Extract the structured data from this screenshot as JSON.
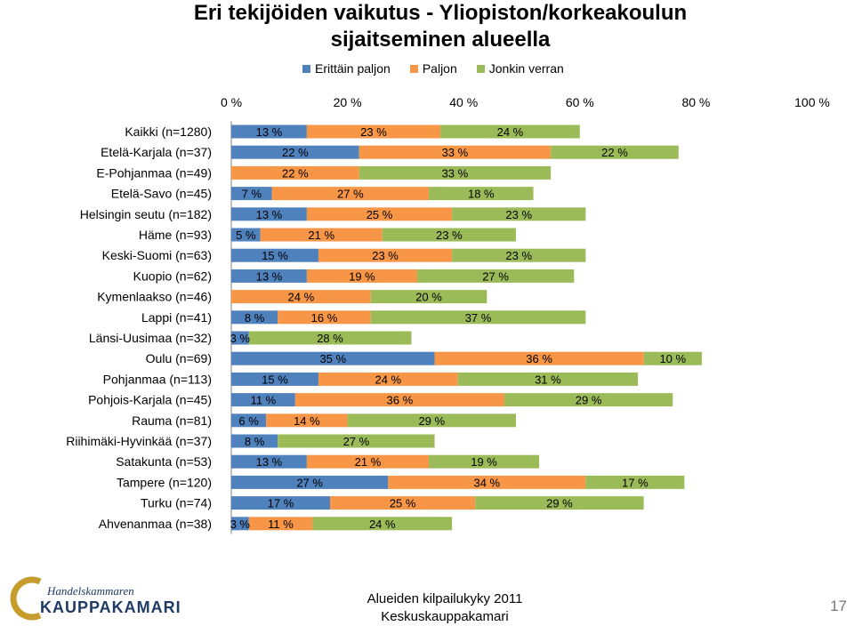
{
  "title_line1": "Eri tekijöiden vaikutus - Yliopiston/korkeakoulun",
  "title_line2": "sijaitseminen alueella",
  "footer": {
    "logo_line1": "Handelskammaren",
    "logo_line2": "KAUPPAKAMARI",
    "line1": "Alueiden kilpailukyky 2011",
    "line2": "Keskuskauppakamari",
    "page": "17"
  },
  "colors": {
    "series1": "#4f81bd",
    "series2": "#f79646",
    "series3": "#9bbb59",
    "logo_blue": "#1f3a64",
    "logo_gold": "#c69c2d"
  },
  "chart_data": {
    "type": "bar",
    "orientation": "horizontal",
    "stacked": true,
    "xlim": [
      0,
      100
    ],
    "x_ticks": [
      "0 %",
      "20 %",
      "40 %",
      "60 %",
      "80 %",
      "100 %"
    ],
    "grid": false,
    "legend_position": "top",
    "categories": [
      "Kaikki (n=1280)",
      "Etelä-Karjala (n=37)",
      "E-Pohjanmaa (n=49)",
      "Etelä-Savo (n=45)",
      "Helsingin seutu (n=182)",
      "Häme (n=93)",
      "Keski-Suomi (n=63)",
      "Kuopio (n=62)",
      "Kymenlaakso (n=46)",
      "Lappi (n=41)",
      "Länsi-Uusimaa (n=32)",
      "Oulu (n=69)",
      "Pohjanmaa (n=113)",
      "Pohjois-Karjala (n=45)",
      "Rauma (n=81)",
      "Riihimäki-Hyvinkää (n=37)",
      "Satakunta (n=53)",
      "Tampere (n=120)",
      "Turku (n=74)",
      "Ahvenanmaa (n=38)"
    ],
    "series": [
      {
        "name": "Erittäin paljon",
        "values": [
          13,
          22,
          0,
          7,
          13,
          5,
          15,
          13,
          0,
          8,
          3,
          35,
          15,
          11,
          6,
          8,
          13,
          27,
          17,
          3
        ]
      },
      {
        "name": "Paljon",
        "values": [
          23,
          33,
          22,
          27,
          25,
          21,
          23,
          19,
          24,
          16,
          0,
          36,
          24,
          36,
          14,
          0,
          21,
          34,
          25,
          11
        ]
      },
      {
        "name": "Jonkin verran",
        "values": [
          24,
          22,
          33,
          18,
          23,
          23,
          23,
          27,
          20,
          37,
          28,
          10,
          31,
          29,
          29,
          27,
          19,
          17,
          29,
          24
        ]
      }
    ]
  }
}
